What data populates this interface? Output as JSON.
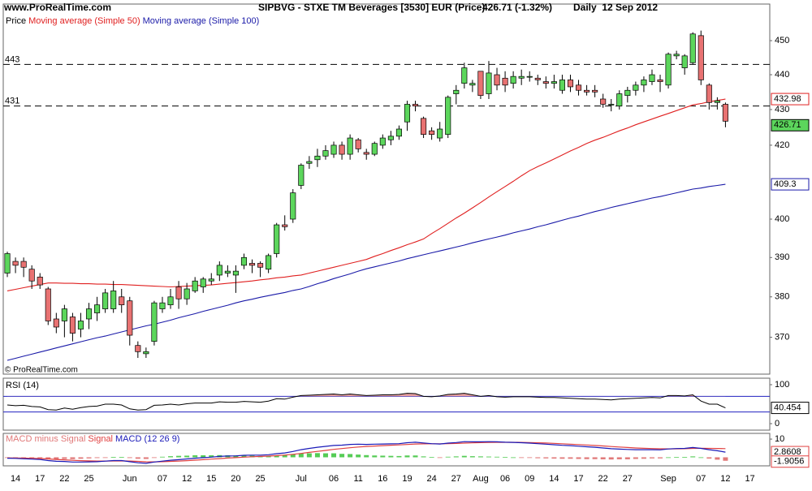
{
  "site": "www.ProRealTime.com",
  "header": {
    "title": "SIPBVG - STXE TM Beverages [3530] EUR (Price)",
    "quote": "426.71 (-1.32%)",
    "period": "Daily  12 Sep 2012"
  },
  "chart_data": [
    {
      "type": "candlestick",
      "price_label": "Price",
      "copyright": "© ProRealTime.com",
      "up_color": "#5cd65c",
      "down_color": "#e87272",
      "categories": [
        null,
        "14",
        null,
        null,
        "17",
        null,
        null,
        "22",
        null,
        null,
        "25",
        null,
        null,
        null,
        null,
        "Jun",
        null,
        null,
        null,
        "07",
        null,
        null,
        "12",
        null,
        null,
        "15",
        null,
        null,
        "20",
        null,
        null,
        "25",
        null,
        null,
        null,
        null,
        "Jul",
        null,
        null,
        null,
        "06",
        null,
        null,
        "11",
        null,
        null,
        "16",
        null,
        null,
        "19",
        null,
        null,
        "24",
        null,
        null,
        "27",
        null,
        null,
        "Aug",
        null,
        null,
        "06",
        null,
        null,
        "09",
        null,
        null,
        "14",
        null,
        null,
        "17",
        null,
        null,
        "22",
        null,
        null,
        "27",
        null,
        null,
        null,
        null,
        "Sep",
        null,
        null,
        null,
        "07",
        null,
        null,
        "12",
        null,
        null,
        "17",
        null,
        null
      ],
      "open": [
        386,
        389,
        389,
        387,
        385,
        382,
        374.5,
        374,
        375,
        372,
        374.5,
        376,
        377,
        377,
        380,
        379,
        368,
        366,
        369,
        377,
        378,
        382.5,
        379.5,
        381.5,
        382.5,
        384,
        385.5,
        386,
        385.5,
        388,
        388.5,
        388.5,
        387,
        391,
        398.5,
        400,
        409,
        415,
        416,
        417,
        417.5,
        420,
        417.5,
        421.5,
        418,
        417.5,
        420,
        421.5,
        422.5,
        426.5,
        431.5,
        427.5,
        424,
        422,
        423,
        434.5,
        437.5,
        437,
        441,
        434.5,
        440,
        439,
        437.5,
        439,
        439.5,
        439,
        438,
        437.5,
        435.5,
        438.5,
        437,
        435.5,
        435.5,
        433,
        431.5,
        431,
        434,
        435.5,
        437,
        438,
        438.5,
        437,
        445.5,
        442,
        443.5,
        451.5,
        437,
        432,
        431.5,
        null,
        null,
        null,
        null,
        null
      ],
      "high": [
        391.5,
        390,
        390,
        388,
        386,
        382.5,
        376,
        378,
        376,
        376,
        378.5,
        380,
        382,
        384,
        382,
        380,
        369,
        367.5,
        379,
        380,
        382,
        384,
        383.5,
        385,
        385,
        386,
        389,
        388,
        388,
        391,
        389.5,
        389,
        391,
        399,
        401,
        408,
        415,
        417,
        419,
        420,
        421,
        421,
        423,
        422,
        419,
        421,
        423,
        424,
        425.5,
        432.5,
        432.5,
        428,
        425,
        426.5,
        434,
        437,
        443.5,
        438.5,
        441,
        444,
        442,
        441,
        441,
        441.5,
        441,
        440,
        439.5,
        440,
        440,
        440,
        438.5,
        437,
        437,
        434.5,
        433,
        435.5,
        436.5,
        438,
        439.5,
        441.5,
        440,
        446.5,
        447,
        446,
        452.5,
        453,
        437.5,
        433.5,
        432,
        null,
        null,
        null,
        null,
        null
      ],
      "low": [
        385,
        386,
        385,
        382,
        382,
        373,
        371,
        370,
        369,
        370,
        372,
        374,
        376,
        376,
        376,
        368,
        365,
        365,
        368,
        376,
        377,
        377,
        378,
        381,
        381,
        383,
        384,
        385,
        381,
        387,
        386,
        385,
        386,
        390,
        397,
        399,
        408,
        413.5,
        414,
        416,
        416.5,
        416,
        416,
        418,
        416,
        417,
        419,
        420,
        421.5,
        424,
        429.5,
        422,
        421.5,
        421,
        422,
        431.5,
        436,
        435,
        433,
        433,
        435.5,
        435,
        436,
        437,
        438,
        437,
        436,
        436,
        434.5,
        435,
        434,
        434,
        433.5,
        430.5,
        429.5,
        430,
        432,
        434,
        435,
        437,
        435,
        436,
        444.5,
        440,
        443,
        437,
        430,
        430,
        425,
        null,
        null,
        null,
        null,
        null
      ],
      "close": [
        391,
        388,
        387.5,
        384,
        383,
        374,
        372.5,
        377,
        371,
        374,
        377,
        378,
        381,
        381.5,
        378,
        370.5,
        366.5,
        366.5,
        378.5,
        378.5,
        380,
        379.5,
        382,
        384,
        384.5,
        384.5,
        388,
        386.5,
        386.5,
        390,
        388,
        387.5,
        390.5,
        398.5,
        398,
        407,
        414.5,
        415.5,
        417,
        418.5,
        420,
        417.5,
        422,
        419,
        417.5,
        420.5,
        422,
        422.5,
        424.5,
        431.5,
        431,
        423,
        423,
        424.5,
        433.5,
        435.5,
        442,
        437.5,
        434,
        440.5,
        437,
        437,
        439.5,
        439.5,
        439.5,
        438.5,
        437.5,
        438,
        438.5,
        436.5,
        435.5,
        435,
        435,
        431.5,
        431.5,
        434.5,
        435.5,
        437,
        438.5,
        440,
        438,
        446,
        446,
        445.5,
        452,
        438.5,
        432,
        432.5,
        426.71,
        null,
        null,
        null,
        null,
        null
      ],
      "series": [
        {
          "name": "Moving average (Simple 50)",
          "color": "#e02020",
          "values": [
            381.5,
            381.9,
            382.3,
            382.7,
            383.1,
            383.5,
            383.5,
            383.4,
            383.4,
            383.3,
            383.3,
            383.2,
            383.2,
            383.1,
            383.1,
            383.0,
            382.9,
            382.8,
            382.7,
            382.6,
            382.5,
            382.6,
            382.7,
            382.8,
            382.9,
            383.0,
            383.2,
            383.4,
            383.6,
            383.8,
            384.0,
            384.3,
            384.5,
            384.8,
            385.0,
            385.3,
            385.5,
            386.0,
            386.5,
            387.0,
            387.5,
            388.0,
            388.5,
            389.0,
            389.5,
            390.3,
            391.0,
            391.8,
            392.5,
            393.3,
            394.0,
            394.8,
            396.2,
            397.5,
            398.9,
            400.3,
            401.6,
            403.0,
            404.4,
            405.9,
            407.3,
            408.7,
            410.1,
            411.6,
            413.0,
            414.1,
            415.1,
            416.2,
            417.3,
            418.4,
            419.4,
            420.5,
            421.4,
            422.2,
            423.1,
            424.0,
            424.8,
            425.7,
            426.5,
            427.3,
            428.1,
            428.9,
            429.7,
            430.5,
            431.3,
            431.7,
            432.2,
            432.6,
            432.98,
            null,
            null,
            null,
            null,
            null
          ]
        },
        {
          "name": "Moving average (Simple 100)",
          "color": "#1a1aa8",
          "values": [
            364.4,
            364.9,
            365.4,
            365.9,
            366.4,
            366.9,
            367.4,
            367.9,
            368.4,
            368.9,
            369.4,
            369.9,
            370.3,
            370.8,
            371.3,
            371.8,
            372.3,
            372.8,
            373.2,
            373.7,
            374.2,
            374.8,
            375.3,
            375.8,
            376.4,
            376.9,
            377.4,
            377.9,
            378.5,
            379.0,
            379.4,
            379.9,
            380.3,
            380.7,
            381.1,
            381.6,
            382.0,
            382.6,
            383.3,
            383.9,
            384.6,
            385.2,
            385.8,
            386.5,
            387.1,
            387.6,
            388.1,
            388.6,
            389.1,
            389.7,
            390.2,
            390.7,
            391.2,
            391.7,
            392.2,
            392.7,
            393.2,
            393.8,
            394.3,
            394.8,
            395.3,
            395.8,
            396.4,
            396.9,
            397.4,
            398.0,
            398.5,
            399.1,
            399.7,
            400.3,
            400.8,
            401.4,
            402.0,
            402.5,
            403.1,
            403.6,
            404.1,
            404.6,
            405.1,
            405.6,
            406.0,
            406.5,
            407.0,
            407.5,
            408.0,
            408.3,
            408.7,
            409.0,
            409.3,
            null,
            null,
            null,
            null,
            null
          ]
        }
      ],
      "hlines": [
        443,
        431
      ],
      "log_scale": true,
      "ylim": [
        361.3,
        461
      ],
      "yticks": [
        370,
        380,
        390,
        400,
        420,
        430,
        440,
        450
      ]
    },
    {
      "type": "line",
      "title": "RSI (14)",
      "color": "#000000",
      "fill_color": "#e8a0a0",
      "level_color": "#2020c0",
      "values": [
        48,
        46,
        47,
        44,
        43,
        36,
        35,
        40,
        37,
        41,
        44,
        45,
        50,
        50,
        48,
        38,
        35,
        36,
        47,
        48,
        50,
        48,
        51,
        53,
        53,
        53,
        56,
        55,
        55,
        57,
        56,
        55,
        58,
        64,
        63,
        68,
        72,
        73,
        74,
        75,
        76,
        74,
        76,
        74,
        72,
        73,
        74,
        74,
        75,
        78,
        77,
        70,
        69,
        71,
        75,
        76,
        78,
        74,
        70,
        72,
        69,
        68,
        69,
        69,
        69,
        68,
        67,
        67,
        66,
        65,
        64,
        63,
        63,
        62,
        61,
        63,
        64,
        65,
        66,
        67,
        66,
        72,
        72,
        71,
        74,
        58,
        50,
        50,
        40.454,
        null,
        null,
        null,
        null,
        null
      ],
      "levels": [
        70,
        30
      ],
      "ylim": [
        -16.7,
        116.7
      ],
      "yticks": [
        100,
        0
      ]
    },
    {
      "type": "macd",
      "series": [
        {
          "name": "MACD minus Signal",
          "type": "bar",
          "color": "#e07878",
          "up_color": "#55cc55",
          "values": [
            -0.3,
            -0.3,
            -0.4,
            -0.5,
            -0.5,
            -0.9,
            -1.0,
            -0.9,
            -1.0,
            -0.8,
            -0.6,
            -0.4,
            -0.1,
            0.2,
            0.2,
            -0.4,
            -0.8,
            -0.9,
            -0.1,
            0.3,
            0.6,
            0.8,
            0.9,
            1.1,
            1.1,
            1.1,
            1.2,
            1.1,
            1.0,
            1.0,
            0.9,
            0.7,
            0.7,
            1.1,
            1.2,
            1.6,
            2.1,
            2.2,
            2.3,
            2.2,
            2.2,
            1.9,
            1.8,
            1.5,
            1.2,
            1.0,
            0.9,
            0.8,
            0.7,
            1.0,
            1.0,
            0.5,
            0.1,
            -0.1,
            0.3,
            0.5,
            0.8,
            0.6,
            0.5,
            0.4,
            0.3,
            0.1,
            0,
            -0.2,
            -0.3,
            -0.5,
            -0.6,
            -0.7,
            -0.8,
            -0.8,
            -0.9,
            -1.0,
            -1.0,
            -1.1,
            -1.2,
            -1.1,
            -1.1,
            -0.9,
            -0.8,
            -0.6,
            -0.6,
            0,
            0.1,
            0.2,
            0.5,
            0,
            -0.7,
            -1.3,
            -1.9056,
            null,
            null,
            null,
            null,
            null
          ]
        },
        {
          "name": "Signal",
          "type": "line",
          "color": "#e04040",
          "values": [
            -0.3,
            -0.36,
            -0.45,
            -0.56,
            -0.69,
            -0.91,
            -1.17,
            -1.4,
            -1.64,
            -1.83,
            -1.96,
            -2.05,
            -2.06,
            -2.01,
            -1.97,
            -2.06,
            -2.25,
            -2.46,
            -2.49,
            -2.41,
            -2.25,
            -2.06,
            -1.83,
            -1.56,
            -1.29,
            -1.01,
            -0.71,
            -0.43,
            -0.18,
            0.08,
            0.3,
            0.48,
            0.66,
            0.93,
            1.22,
            1.62,
            2.14,
            2.69,
            3.25,
            3.8,
            4.34,
            4.81,
            5.27,
            5.66,
            5.95,
            6.2,
            6.42,
            6.62,
            6.8,
            7.04,
            7.29,
            7.41,
            7.43,
            7.4,
            7.48,
            7.6,
            7.8,
            7.94,
            8.05,
            8.16,
            8.23,
            8.24,
            8.23,
            8.18,
            8.1,
            7.98,
            7.82,
            7.64,
            7.43,
            7.22,
            7.0,
            6.76,
            6.51,
            6.23,
            5.92,
            5.64,
            5.37,
            5.14,
            4.95,
            4.8,
            4.66,
            4.65,
            4.68,
            4.72,
            4.9,
            4.92,
            4.9,
            4.85,
            4.77,
            null,
            null,
            null,
            null,
            null
          ]
        },
        {
          "name": "MACD (12 26 9)",
          "type": "line",
          "color": "#1a1ab8",
          "values": [
            -0.5,
            -0.6,
            -0.8,
            -1.0,
            -1.2,
            -1.8,
            -2.2,
            -2.3,
            -2.6,
            -2.6,
            -2.5,
            -2.4,
            -2.1,
            -1.8,
            -1.8,
            -2.4,
            -3.0,
            -3.3,
            -2.6,
            -2.1,
            -1.6,
            -1.3,
            -0.9,
            -0.5,
            -0.2,
            0.1,
            0.5,
            0.7,
            0.8,
            1.1,
            1.2,
            1.2,
            1.4,
            2.0,
            2.4,
            3.2,
            4.2,
            4.9,
            5.5,
            6.0,
            6.5,
            6.7,
            7.1,
            7.2,
            7.1,
            7.2,
            7.3,
            7.4,
            7.5,
            8.0,
            8.3,
            7.9,
            7.5,
            7.3,
            7.8,
            8.1,
            8.6,
            8.5,
            8.5,
            8.6,
            8.5,
            8.3,
            8.2,
            8.0,
            7.8,
            7.5,
            7.2,
            6.9,
            6.6,
            6.4,
            6.1,
            5.8,
            5.5,
            5.1,
            4.7,
            4.5,
            4.3,
            4.2,
            4.2,
            4.2,
            4.1,
            4.6,
            4.8,
            4.9,
            5.4,
            4.9,
            4.2,
            3.6,
            2.8608,
            null,
            null,
            null,
            null,
            null
          ]
        }
      ],
      "ylim": [
        -3.8,
        12.7
      ],
      "yticks": [
        10
      ]
    }
  ]
}
